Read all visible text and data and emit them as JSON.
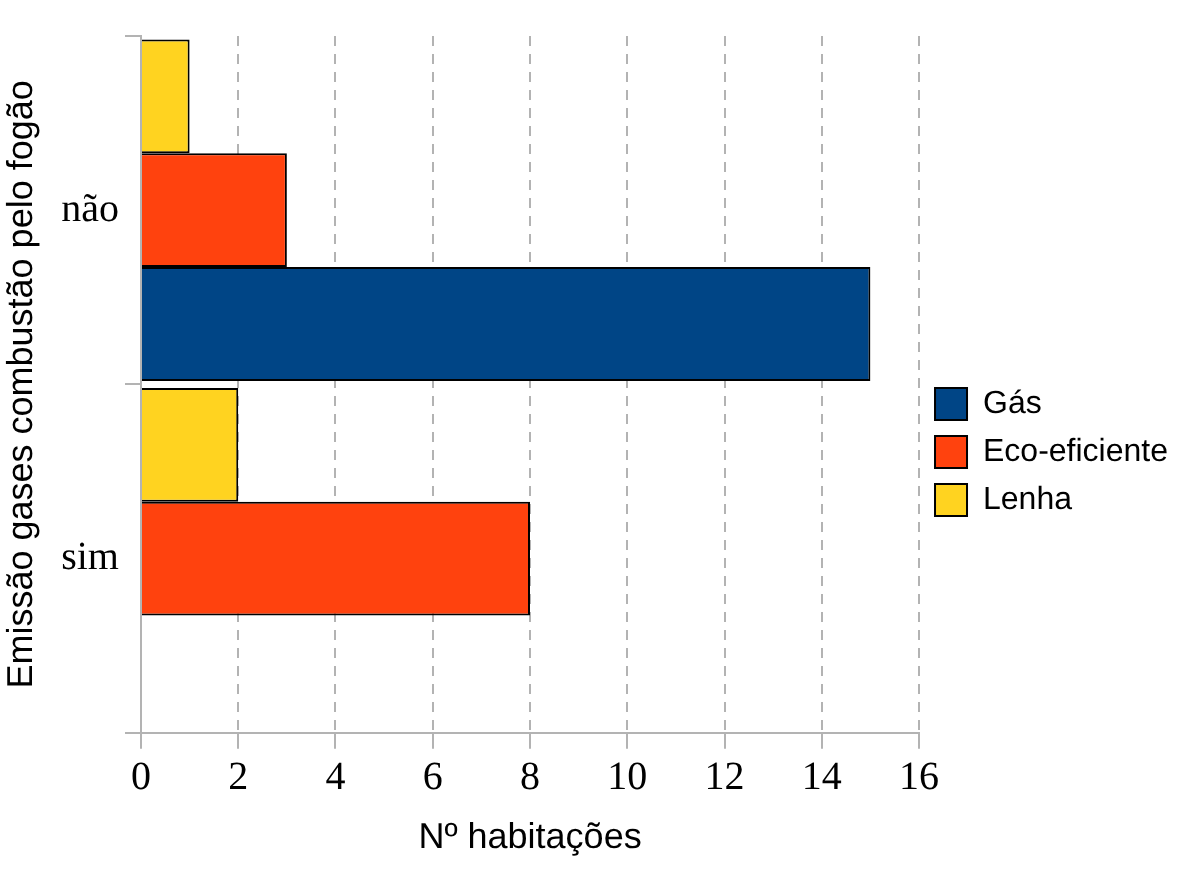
{
  "chart_data": {
    "type": "bar",
    "orientation": "horizontal",
    "xlabel": "Nº habitações",
    "ylabel": "Emissão gases combustão pelo fogão",
    "categories": [
      "não",
      "sim"
    ],
    "series": [
      {
        "name": "Gás",
        "color": "#004586",
        "values": [
          15,
          0
        ]
      },
      {
        "name": "Eco-eficiente",
        "color": "#ff420e",
        "values": [
          3,
          8
        ]
      },
      {
        "name": "Lenha",
        "color": "#ffd320",
        "values": [
          1,
          2
        ]
      }
    ],
    "xlim": [
      0,
      16
    ],
    "xticks": [
      0,
      2,
      4,
      6,
      8,
      10,
      12,
      14,
      16
    ],
    "grid": "x",
    "legend": "right"
  }
}
